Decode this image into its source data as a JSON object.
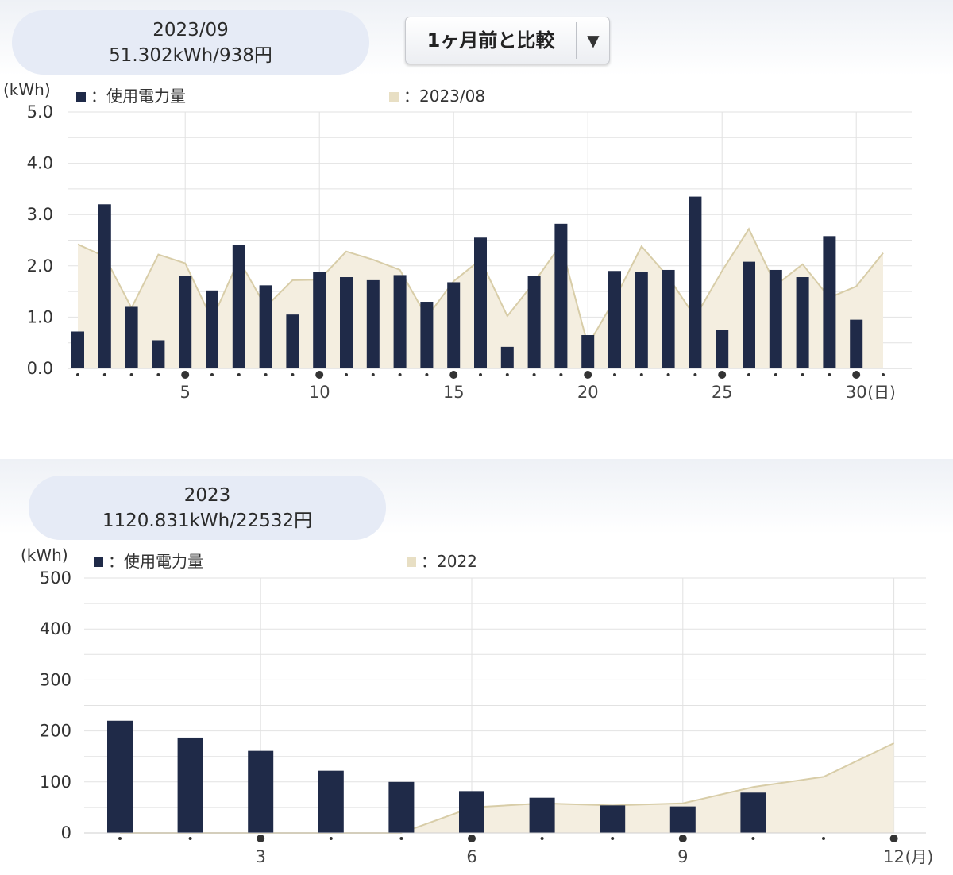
{
  "monthly": {
    "summary": {
      "period": "2023/09",
      "usage_cost": "51.302kWh/938円"
    },
    "compare_select": {
      "label": "1ヶ月前と比較",
      "arrow_icon": "▼"
    },
    "colors": {
      "usage": "#1f2a48",
      "compare_fill": "#f4eee0",
      "compare_line": "#d8cda8",
      "grid": "#e2e2e2"
    },
    "chart_data": {
      "type": "bar",
      "title": "",
      "ylabel": "(kWh)",
      "xlabel": "(日)",
      "ylim": [
        0,
        5
      ],
      "y_ticks": [
        "0.0",
        "1.0",
        "2.0",
        "3.0",
        "4.0",
        "5.0"
      ],
      "x_major_ticks": [
        "5",
        "10",
        "15",
        "20",
        "25",
        "30"
      ],
      "x_major_positions": [
        5,
        10,
        15,
        20,
        25,
        30
      ],
      "x_dot_positions": [
        1,
        2,
        3,
        4,
        5,
        6,
        7,
        8,
        9,
        10,
        11,
        12,
        13,
        14,
        15,
        16,
        17,
        18,
        19,
        20,
        21,
        22,
        23,
        24,
        25,
        26,
        27,
        28,
        29,
        30,
        31
      ],
      "x_unit": "(日)",
      "legend": [
        {
          "name": "：使用電力量",
          "swatch": "#1f2a48"
        },
        {
          "name": "：2023/08",
          "swatch": "#e8dfc4"
        }
      ],
      "series": [
        {
          "name": "：使用電力量",
          "type": "bar",
          "x": [
            1,
            2,
            3,
            4,
            5,
            6,
            7,
            8,
            9,
            10,
            11,
            12,
            13,
            14,
            15,
            16,
            17,
            18,
            19,
            20,
            21,
            22,
            23,
            24,
            25,
            26,
            27,
            28,
            29,
            30
          ],
          "values": [
            0.72,
            3.2,
            1.2,
            0.55,
            1.8,
            1.52,
            2.4,
            1.62,
            1.05,
            1.88,
            1.78,
            1.72,
            1.82,
            1.3,
            1.68,
            2.55,
            0.42,
            1.8,
            2.82,
            0.65,
            1.9,
            1.88,
            1.92,
            3.35,
            0.75,
            2.08,
            1.92,
            1.78,
            2.58,
            0.95
          ]
        },
        {
          "name": "：2023/08",
          "type": "area",
          "x": [
            1,
            2,
            3,
            4,
            5,
            6,
            7,
            8,
            9,
            10,
            11,
            12,
            13,
            14,
            15,
            16,
            17,
            18,
            19,
            20,
            21,
            22,
            23,
            24,
            25,
            26,
            27,
            28,
            29,
            30,
            31
          ],
          "values": [
            2.42,
            2.18,
            1.18,
            2.22,
            2.05,
            0.95,
            2.12,
            1.2,
            1.72,
            1.73,
            2.28,
            2.12,
            1.92,
            1.0,
            1.7,
            2.12,
            1.02,
            1.68,
            2.42,
            0.45,
            1.35,
            2.38,
            1.78,
            1.0,
            1.9,
            2.72,
            1.62,
            2.03,
            1.38,
            1.6,
            2.25
          ]
        }
      ]
    }
  },
  "yearly": {
    "summary": {
      "period": "2023",
      "usage_cost": "1120.831kWh/22532円"
    },
    "colors": {
      "usage": "#1f2a48",
      "compare_fill": "#f4eee0",
      "compare_line": "#d8cda8",
      "grid": "#e2e2e2"
    },
    "chart_data": {
      "type": "bar",
      "title": "",
      "ylabel": "(kWh)",
      "xlabel": "(月)",
      "ylim": [
        0,
        500
      ],
      "y_ticks": [
        "0",
        "100",
        "200",
        "300",
        "400",
        "500"
      ],
      "x_major_ticks": [
        "3",
        "6",
        "9",
        "12"
      ],
      "x_major_positions": [
        3,
        6,
        9,
        12
      ],
      "x_dot_positions": [
        1,
        2,
        3,
        4,
        5,
        6,
        7,
        8,
        9,
        10,
        11,
        12
      ],
      "x_unit": "(月)",
      "legend": [
        {
          "name": "：使用電力量",
          "swatch": "#1f2a48"
        },
        {
          "name": "：2022",
          "swatch": "#e8dfc4"
        }
      ],
      "series": [
        {
          "name": "：使用電力量",
          "type": "bar",
          "x": [
            1,
            2,
            3,
            4,
            5,
            6,
            7,
            8,
            9,
            10
          ],
          "values": [
            220,
            187,
            161,
            122,
            100,
            82,
            69,
            54,
            52,
            79
          ]
        },
        {
          "name": "：2022",
          "type": "area",
          "x": [
            1,
            2,
            3,
            4,
            5,
            6,
            7,
            8,
            9,
            10,
            11,
            12
          ],
          "values": [
            0,
            0,
            0,
            0,
            0,
            50,
            58,
            54,
            58,
            90,
            110,
            176
          ]
        }
      ]
    }
  }
}
